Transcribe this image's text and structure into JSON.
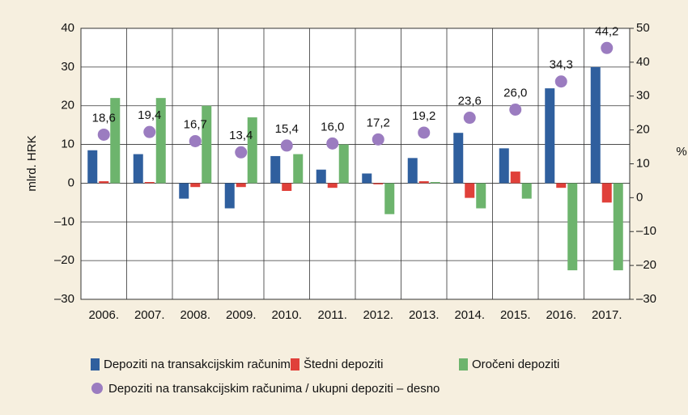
{
  "chart_data": {
    "type": "bar",
    "y_label": "mlrd. HRK",
    "y2_label": "%",
    "categories": [
      "2006.",
      "2007.",
      "2008.",
      "2009.",
      "2010.",
      "2011.",
      "2012.",
      "2013.",
      "2014.",
      "2015.",
      "2016.",
      "2017."
    ],
    "series": [
      {
        "name": "Depoziti na transakcijskim računima",
        "color": "#2f5f9e",
        "values": [
          8.5,
          7.5,
          -4,
          -6.5,
          7,
          3.5,
          2.5,
          6.5,
          13,
          9,
          24.5,
          30
        ]
      },
      {
        "name": "Štedni depoziti",
        "color": "#e0403a",
        "values": [
          0.5,
          0.3,
          -1,
          -1,
          -2,
          -1.2,
          -0.3,
          0.5,
          -3.8,
          3,
          -1.2,
          -5
        ]
      },
      {
        "name": "Oročeni depoziti",
        "color": "#6db46d",
        "values": [
          22,
          22,
          20,
          17,
          7.5,
          10,
          -8,
          0.3,
          -6.5,
          -4,
          -22.5,
          -22.5
        ]
      },
      {
        "name": "Depoziti na transakcijskim računima / ukupni depoziti – desno",
        "color": "#9b7cc0",
        "type": "scatter",
        "axis": "y2",
        "values": [
          18.6,
          19.4,
          16.7,
          13.4,
          15.4,
          16.0,
          17.2,
          19.2,
          23.6,
          26.0,
          34.3,
          44.2
        ],
        "value_labels": [
          "18,6",
          "19,4",
          "16,7",
          "13,4",
          "15,4",
          "16,0",
          "17,2",
          "19,2",
          "23,6",
          "26,0",
          "34,3",
          "44,2"
        ]
      }
    ],
    "ylim": [
      -30,
      40
    ],
    "yticks": [
      {
        "value": -30,
        "label": "–30"
      },
      {
        "value": -20,
        "label": "–20"
      },
      {
        "value": -10,
        "label": "–10"
      },
      0,
      10,
      20,
      30,
      40
    ],
    "y2lim": [
      -30,
      50
    ],
    "y2ticks": [
      {
        "value": -30,
        "label": "–30"
      },
      {
        "value": -20,
        "label": "–20"
      },
      {
        "value": -10,
        "label": "–10"
      },
      0,
      10,
      20,
      30,
      40,
      50
    ],
    "grid": true
  }
}
